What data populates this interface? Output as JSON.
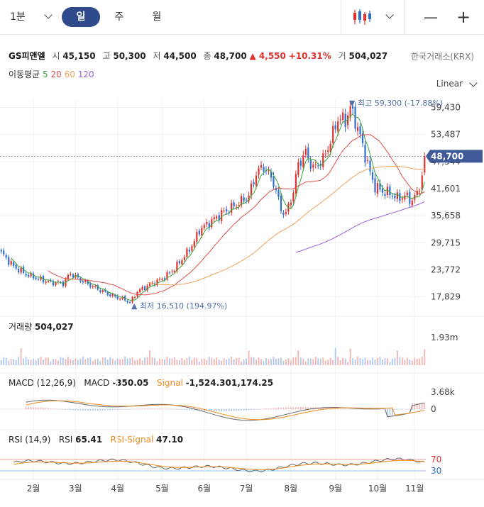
{
  "toolbar": {
    "interval_selected": "1분",
    "tabs": [
      {
        "label": "일",
        "active": true
      },
      {
        "label": "주",
        "active": false
      },
      {
        "label": "월",
        "active": false
      }
    ],
    "chart_type_icon": "candlestick-icon",
    "minus_label": "—",
    "plus_label": "+"
  },
  "stock": {
    "name": "GS피앤엘",
    "open_label": "시",
    "open": "45,150",
    "high_label": "고",
    "high": "50,300",
    "low_label": "저",
    "low": "44,500",
    "close_label": "종",
    "close": "48,700",
    "change": "▲ 4,550",
    "change_pct": "+10.31%",
    "volume_label": "거",
    "volume": "504,027",
    "exchange": "한국거래소(KRX)",
    "colors": {
      "up": "#e0322d",
      "down": "#2f6fcf",
      "accent": "#3f5a96"
    }
  },
  "ma_legend": {
    "label": "이동평균",
    "items": [
      {
        "period": "5",
        "color": "#3aa63a"
      },
      {
        "period": "20",
        "color": "#e0504a"
      },
      {
        "period": "60",
        "color": "#f0a35c"
      },
      {
        "period": "120",
        "color": "#9a63e0"
      }
    ]
  },
  "scale_mode": "Linear",
  "chart_data": {
    "type": "candlestick",
    "x_labels": [
      "2월",
      "3월",
      "4월",
      "5월",
      "6월",
      "7월",
      "8월",
      "9월",
      "10월",
      "11월"
    ],
    "price_axis": {
      "ticks": [
        "59,430",
        "53,487",
        "47,544",
        "41,601",
        "35,658",
        "29,715",
        "23,772",
        "17,829"
      ],
      "ylim": [
        14500,
        62000
      ]
    },
    "current_price": "48,700",
    "annotations": {
      "high": "▼ 최고 59,300 (-17.88%)",
      "low": "▲ 최저 16,510 (194.97%)"
    },
    "price_path": [
      [
        0,
        27500
      ],
      [
        5,
        24500
      ],
      [
        10,
        22800
      ],
      [
        15,
        21800
      ],
      [
        20,
        21000
      ],
      [
        25,
        20800
      ],
      [
        28,
        23000
      ],
      [
        32,
        21500
      ],
      [
        38,
        19800
      ],
      [
        45,
        18000
      ],
      [
        50,
        17200
      ],
      [
        52,
        16510
      ],
      [
        55,
        19000
      ],
      [
        60,
        20500
      ],
      [
        65,
        21800
      ],
      [
        70,
        24000
      ],
      [
        75,
        27500
      ],
      [
        78,
        30000
      ],
      [
        80,
        32500
      ],
      [
        85,
        34500
      ],
      [
        90,
        36500
      ],
      [
        95,
        38000
      ],
      [
        100,
        40000
      ],
      [
        103,
        45000
      ],
      [
        106,
        46500
      ],
      [
        110,
        43000
      ],
      [
        113,
        37000
      ],
      [
        115,
        36000
      ],
      [
        118,
        41000
      ],
      [
        120,
        47000
      ],
      [
        123,
        49500
      ],
      [
        126,
        46000
      ],
      [
        130,
        48000
      ],
      [
        133,
        52000
      ],
      [
        136,
        57000
      ],
      [
        139,
        56500
      ],
      [
        141,
        59300
      ],
      [
        143,
        56500
      ],
      [
        145,
        53000
      ],
      [
        147,
        49000
      ],
      [
        149,
        45000
      ],
      [
        151,
        42000
      ],
      [
        154,
        41000
      ],
      [
        157,
        40500
      ],
      [
        160,
        39500
      ],
      [
        163,
        40000
      ],
      [
        166,
        39000
      ],
      [
        168,
        40500
      ],
      [
        170,
        44150
      ],
      [
        171,
        48700
      ]
    ],
    "volume": {
      "label": "거래량",
      "value": "504,027",
      "axis_tick": "1.93m"
    },
    "macd": {
      "params": "MACD (12,26,9)",
      "macd_label": "MACD",
      "macd_value": "-350.05",
      "signal_label": "Signal",
      "signal_value": "-1,524.301,174.25",
      "axis_ticks": [
        "3.68k",
        "0"
      ]
    },
    "rsi": {
      "params": "RSI (14,9)",
      "rsi_label": "RSI",
      "rsi_value": "65.41",
      "signal_label": "RSI-Signal",
      "signal_value": "47.10",
      "levels": [
        "70",
        "30"
      ]
    }
  }
}
